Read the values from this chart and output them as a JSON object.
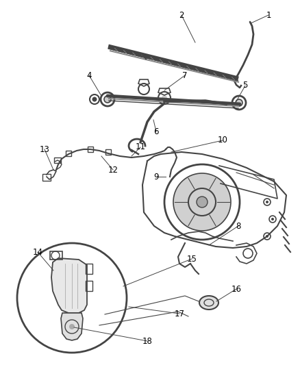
{
  "background_color": "#ffffff",
  "line_color": "#444444",
  "label_color": "#000000",
  "fig_width": 4.38,
  "fig_height": 5.33,
  "dpi": 100,
  "xlim": [
    0,
    438
  ],
  "ylim": [
    0,
    533
  ]
}
